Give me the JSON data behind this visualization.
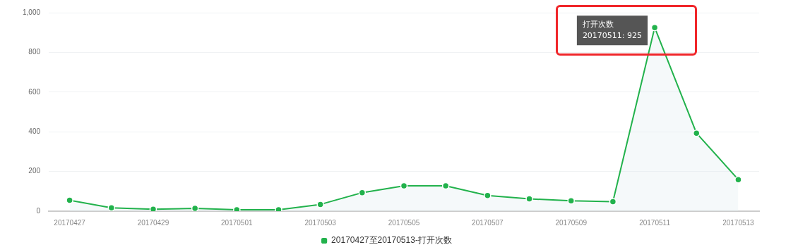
{
  "chart_data": {
    "type": "area",
    "categories": [
      "20170427",
      null,
      "20170429",
      null,
      "20170501",
      null,
      "20170503",
      null,
      "20170505",
      null,
      "20170507",
      null,
      "20170509",
      null,
      "20170511",
      null,
      "20170513"
    ],
    "series": [
      {
        "name": "20170427至20170513-打开次数",
        "color": "#22b24c",
        "values": [
          55,
          17,
          10,
          14,
          7,
          7,
          34,
          93,
          128,
          128,
          79,
          62,
          52,
          48,
          925,
          393,
          159
        ]
      }
    ],
    "ylim": [
      0,
      1000
    ],
    "yticks": [
      0,
      {
        "value": 200,
        "label": "200"
      },
      {
        "value": 400,
        "label": "400"
      },
      {
        "value": 600,
        "label": "600"
      },
      {
        "value": 800,
        "label": "800"
      },
      {
        "value": 1000,
        "label": "1,000"
      }
    ],
    "grid": "y",
    "legend": "bottom",
    "marker": "circle",
    "annotations": [
      {
        "text": "打开次数\n20170511: 925",
        "x": "20170511",
        "y": 925
      }
    ]
  }
}
